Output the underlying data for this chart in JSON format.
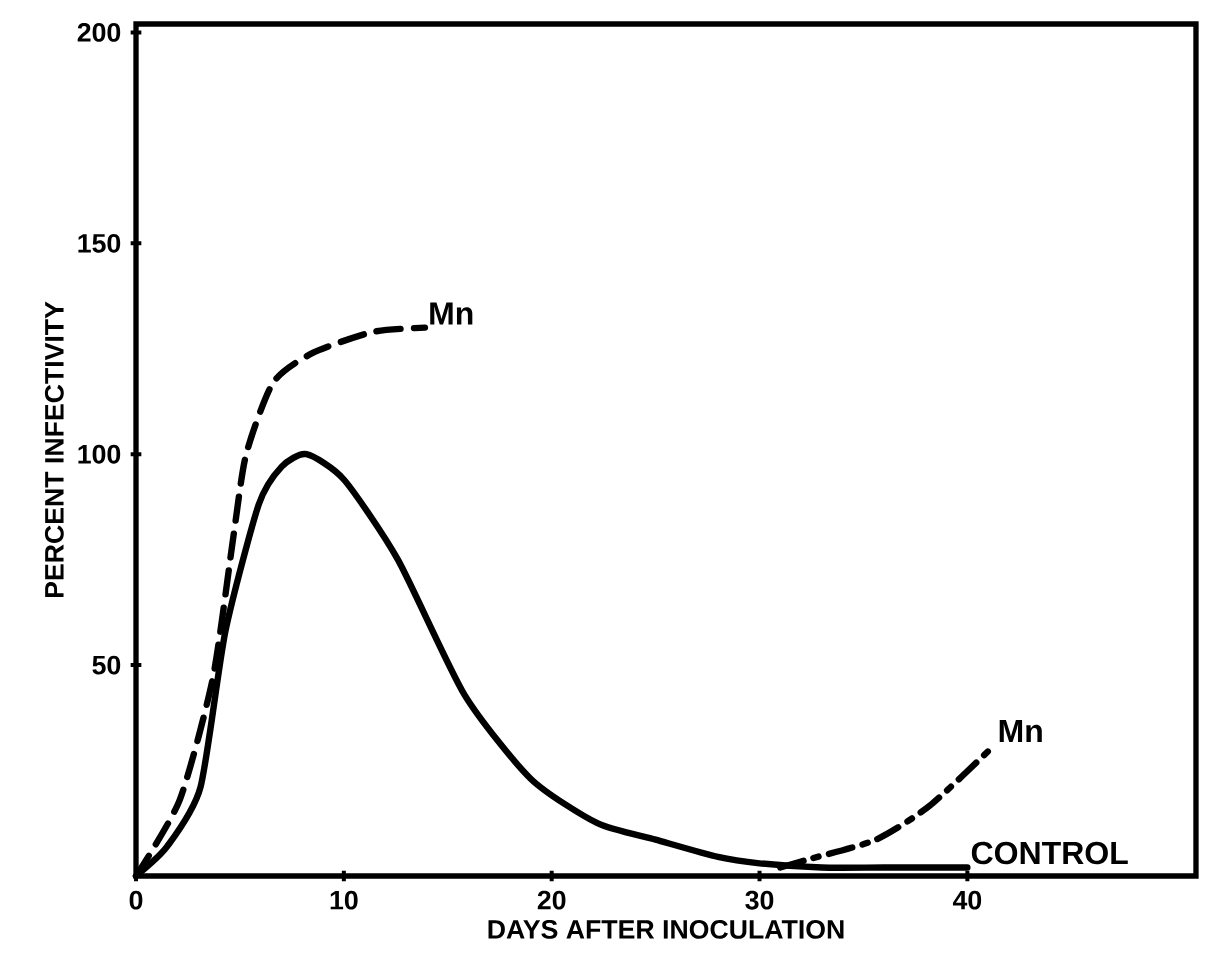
{
  "chart_data": {
    "type": "line",
    "xlabel": "DAYS AFTER INOCULATION",
    "ylabel": "PERCENT INFECTIVITY",
    "xlim": [
      0,
      51
    ],
    "ylim": [
      0,
      202
    ],
    "xticks": [
      0,
      10,
      20,
      30,
      40
    ],
    "yticks": [
      50,
      100,
      150,
      200
    ],
    "grid": false,
    "series": [
      {
        "name": "CONTROL",
        "color": "#000000",
        "line_style": "solid",
        "x": [
          0,
          1.5,
          3.1,
          4.3,
          5.9,
          7,
          8.2,
          10,
          12.6,
          15.8,
          19,
          22.2,
          25,
          28,
          30,
          33,
          36,
          40
        ],
        "values": [
          0,
          7,
          21,
          58,
          88,
          97,
          100,
          94,
          75,
          43,
          23,
          12.5,
          8.6,
          4.5,
          3,
          2,
          2,
          2
        ]
      },
      {
        "name": "Mn",
        "color": "#000000",
        "line_style": "dashed",
        "x": [
          0,
          2.1,
          3.7,
          4.7,
          5.3,
          6.6,
          8.5,
          11.4,
          13.9
        ],
        "values": [
          0,
          18,
          47,
          81,
          100,
          117,
          124,
          129,
          130
        ]
      },
      {
        "name": "Mn",
        "color": "#000000",
        "line_style": "dashdotted",
        "x": [
          31,
          32.4,
          35.6,
          38.2,
          41.3
        ],
        "values": [
          2,
          4,
          8.6,
          16.7,
          31
        ]
      }
    ]
  }
}
